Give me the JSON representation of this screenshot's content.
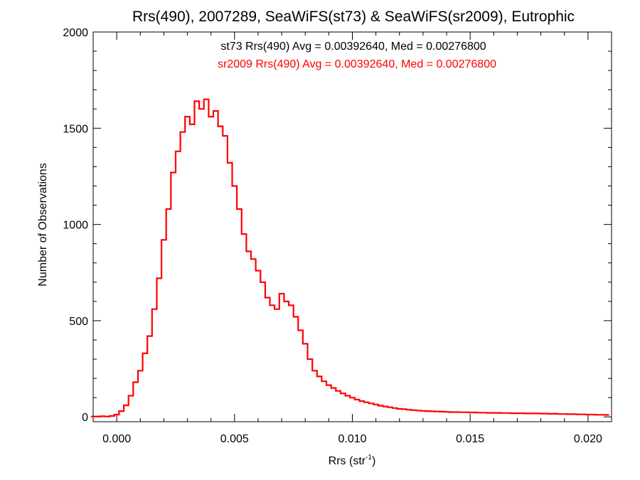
{
  "chart_data": {
    "type": "line",
    "title": "Rrs(490), 2007289, SeaWiFS(st73) & SeaWiFS(sr2009), Eutrophic",
    "xlabel": "Rrs (str",
    "xlabel_sup": "-1",
    "xlabel_close": ")",
    "ylabel": "Number of Observations",
    "xlim": [
      -0.001,
      0.021
    ],
    "ylim": [
      -25,
      2000
    ],
    "x_ticks": [
      0.0,
      0.005,
      0.01,
      0.015,
      0.02
    ],
    "x_tick_labels": [
      "0.000",
      "0.005",
      "0.010",
      "0.015",
      "0.020"
    ],
    "y_ticks": [
      0,
      500,
      1000,
      1500,
      2000
    ],
    "y_tick_labels": [
      "0",
      "500",
      "1000",
      "1500",
      "2000"
    ],
    "grid": false,
    "annotations": [
      {
        "text": "st73 Rrs(490) Avg = 0.00392640, Med = 0.00276800",
        "color": "#000000"
      },
      {
        "text": "sr2009 Rrs(490) Avg = 0.00392640, Med = 0.00276800",
        "color": "#ff0000"
      }
    ],
    "series": [
      {
        "color": "#ff0000",
        "style": "histogram-step",
        "points": [
          [
            -0.001,
            2
          ],
          [
            -0.0008,
            2
          ],
          [
            -0.0006,
            3
          ],
          [
            -0.0004,
            2
          ],
          [
            -0.0002,
            5
          ],
          [
            0.0,
            12
          ],
          [
            0.0002,
            30
          ],
          [
            0.0004,
            60
          ],
          [
            0.0006,
            110
          ],
          [
            0.0008,
            180
          ],
          [
            0.001,
            240
          ],
          [
            0.0012,
            330
          ],
          [
            0.0014,
            420
          ],
          [
            0.0016,
            560
          ],
          [
            0.0018,
            720
          ],
          [
            0.002,
            920
          ],
          [
            0.0022,
            1080
          ],
          [
            0.0024,
            1270
          ],
          [
            0.0026,
            1380
          ],
          [
            0.0028,
            1480
          ],
          [
            0.003,
            1560
          ],
          [
            0.0032,
            1520
          ],
          [
            0.0034,
            1640
          ],
          [
            0.0036,
            1600
          ],
          [
            0.0038,
            1650
          ],
          [
            0.004,
            1560
          ],
          [
            0.0042,
            1590
          ],
          [
            0.0044,
            1510
          ],
          [
            0.0046,
            1460
          ],
          [
            0.0048,
            1320
          ],
          [
            0.005,
            1200
          ],
          [
            0.0052,
            1080
          ],
          [
            0.0054,
            950
          ],
          [
            0.0056,
            860
          ],
          [
            0.0058,
            820
          ],
          [
            0.006,
            760
          ],
          [
            0.0062,
            700
          ],
          [
            0.0064,
            620
          ],
          [
            0.0066,
            580
          ],
          [
            0.0068,
            560
          ],
          [
            0.007,
            640
          ],
          [
            0.0072,
            600
          ],
          [
            0.0074,
            580
          ],
          [
            0.0076,
            520
          ],
          [
            0.0078,
            450
          ],
          [
            0.008,
            380
          ],
          [
            0.0082,
            300
          ],
          [
            0.0084,
            240
          ],
          [
            0.0086,
            210
          ],
          [
            0.0088,
            185
          ],
          [
            0.009,
            165
          ],
          [
            0.0092,
            150
          ],
          [
            0.0094,
            135
          ],
          [
            0.0096,
            122
          ],
          [
            0.0098,
            110
          ],
          [
            0.01,
            100
          ],
          [
            0.0102,
            90
          ],
          [
            0.0104,
            82
          ],
          [
            0.0106,
            76
          ],
          [
            0.0108,
            70
          ],
          [
            0.011,
            64
          ],
          [
            0.0112,
            58
          ],
          [
            0.0114,
            54
          ],
          [
            0.0116,
            50
          ],
          [
            0.0118,
            46
          ],
          [
            0.012,
            42
          ],
          [
            0.0122,
            40
          ],
          [
            0.0124,
            37
          ],
          [
            0.0126,
            35
          ],
          [
            0.0128,
            33
          ],
          [
            0.013,
            31
          ],
          [
            0.0132,
            30
          ],
          [
            0.0134,
            29
          ],
          [
            0.0136,
            28
          ],
          [
            0.0138,
            27
          ],
          [
            0.014,
            26
          ],
          [
            0.0142,
            25
          ],
          [
            0.0144,
            25
          ],
          [
            0.0146,
            24
          ],
          [
            0.0148,
            24
          ],
          [
            0.015,
            23
          ],
          [
            0.0152,
            23
          ],
          [
            0.0154,
            22
          ],
          [
            0.0156,
            22
          ],
          [
            0.0158,
            21
          ],
          [
            0.016,
            21
          ],
          [
            0.0162,
            21
          ],
          [
            0.0164,
            20
          ],
          [
            0.0166,
            20
          ],
          [
            0.0168,
            19
          ],
          [
            0.017,
            19
          ],
          [
            0.0172,
            19
          ],
          [
            0.0174,
            18
          ],
          [
            0.0176,
            18
          ],
          [
            0.0178,
            18
          ],
          [
            0.018,
            17
          ],
          [
            0.0182,
            17
          ],
          [
            0.0184,
            16
          ],
          [
            0.0186,
            16
          ],
          [
            0.0188,
            15
          ],
          [
            0.019,
            15
          ],
          [
            0.0192,
            14
          ],
          [
            0.0194,
            14
          ],
          [
            0.0196,
            13
          ],
          [
            0.0198,
            13
          ],
          [
            0.02,
            12
          ],
          [
            0.0202,
            12
          ],
          [
            0.0204,
            11
          ],
          [
            0.0206,
            11
          ],
          [
            0.0208,
            10
          ]
        ]
      }
    ]
  }
}
